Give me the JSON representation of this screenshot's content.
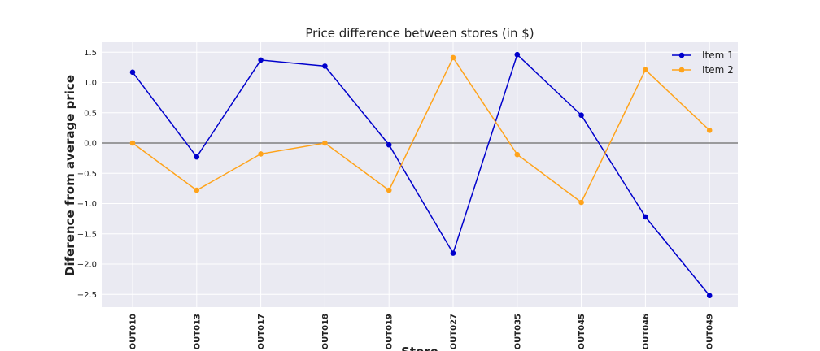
{
  "chart_data": {
    "type": "line",
    "title": "Price difference between stores (in $)",
    "xlabel": "Store",
    "ylabel": "Diference from average price",
    "categories": [
      "OUT010",
      "OUT013",
      "OUT017",
      "OUT018",
      "OUT019",
      "OUT027",
      "OUT035",
      "OUT045",
      "OUT046",
      "OUT049"
    ],
    "series": [
      {
        "name": "Item 1",
        "color": "#0000cc",
        "values": [
          1.17,
          -0.23,
          1.37,
          1.27,
          -0.03,
          -1.82,
          1.46,
          0.46,
          -1.22,
          -2.52
        ]
      },
      {
        "name": "Item 2",
        "color": "#ffa31a",
        "values": [
          0.0,
          -0.78,
          -0.18,
          0.0,
          -0.78,
          1.41,
          -0.19,
          -0.98,
          1.21,
          0.21
        ]
      }
    ],
    "yticks": [
      -2.5,
      -2.0,
      -1.5,
      -1.0,
      -0.5,
      0.0,
      0.5,
      1.0,
      1.5
    ],
    "ytick_labels": [
      "−2.5",
      "−2.0",
      "−1.5",
      "−1.0",
      "−0.5",
      "0.0",
      "0.5",
      "1.0",
      "1.5"
    ],
    "ylim": [
      -2.7,
      1.65
    ],
    "reference_line": {
      "y": 0.0,
      "color": "#808080"
    },
    "grid": true,
    "legend_position": "top-right",
    "plot_background": "#eaeaf2"
  }
}
